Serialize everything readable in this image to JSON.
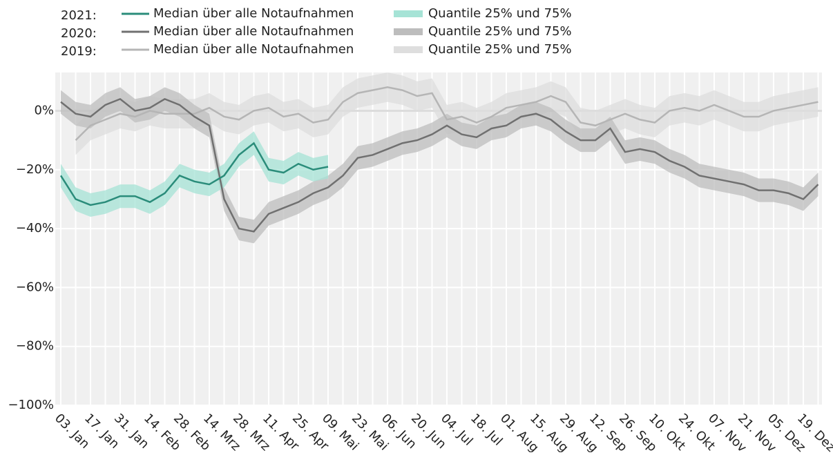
{
  "chart_data": {
    "type": "line",
    "categories": [
      "03. Jan",
      null,
      "17. Jan",
      null,
      "31. Jan",
      null,
      "14. Feb",
      null,
      "28. Feb",
      null,
      "14. Mrz",
      null,
      "28. Mrz",
      null,
      "11. Apr",
      null,
      "25. Apr",
      null,
      "09. Mai",
      null,
      "23. Mai",
      null,
      "06. Jun",
      null,
      "20. Jun",
      null,
      "04. Jul",
      null,
      "18. Jul",
      null,
      "01. Aug",
      null,
      "15. Aug",
      null,
      "29. Aug",
      null,
      "12. Sep",
      null,
      "26. Sep",
      null,
      "10. Okt",
      null,
      "24. Okt",
      null,
      "07. Nov",
      null,
      "21. Nov",
      null,
      "05. Dez",
      null,
      "19. Dez",
      null
    ],
    "ylim": [
      -100,
      13
    ],
    "yticks": [
      {
        "value": 0,
        "label": "0%"
      },
      {
        "value": -20,
        "label": "−20%"
      },
      {
        "value": -40,
        "label": "−40%"
      },
      {
        "value": -60,
        "label": "−60%"
      },
      {
        "value": -80,
        "label": "−80%"
      },
      {
        "value": -100,
        "label": "−100%"
      }
    ],
    "grid": true,
    "series": [
      {
        "name": "2019:",
        "band": {
          "name": "Quantile 25% und 75%",
          "color": "#dedede",
          "lower": [
            null,
            -15,
            -10,
            -8,
            -6,
            -7,
            -5,
            -6,
            -6,
            -6,
            -4,
            -7,
            -8,
            -5,
            -4,
            -7,
            -6,
            -9,
            -8,
            -2,
            1,
            2,
            3,
            2,
            0,
            1,
            -8,
            -7,
            -9,
            -7,
            -4,
            -3,
            -2,
            0,
            -2,
            -9,
            -10,
            -8,
            -6,
            -8,
            -9,
            -5,
            -4,
            -5,
            -3,
            -5,
            -7,
            -7,
            -5,
            -4,
            -3,
            -2
          ],
          "upper": [
            null,
            -5,
            0,
            2,
            4,
            3,
            5,
            4,
            4,
            4,
            6,
            3,
            2,
            5,
            6,
            3,
            4,
            1,
            2,
            8,
            11,
            12,
            13,
            12,
            10,
            11,
            2,
            3,
            1,
            3,
            6,
            7,
            8,
            10,
            8,
            1,
            0,
            2,
            4,
            2,
            1,
            5,
            6,
            5,
            7,
            5,
            3,
            3,
            5,
            6,
            7,
            8
          ]
        },
        "median": {
          "name": "Median über alle Notaufnahmen",
          "color": "#b5b5b5",
          "values": [
            null,
            -10,
            -5,
            -3,
            -1,
            -2,
            0,
            -1,
            -1,
            -1,
            1,
            -2,
            -3,
            0,
            1,
            -2,
            -1,
            -4,
            -3,
            3,
            6,
            7,
            8,
            7,
            5,
            6,
            -3,
            -2,
            -4,
            -2,
            1,
            2,
            3,
            5,
            3,
            -4,
            -5,
            -3,
            -1,
            -3,
            -4,
            0,
            1,
            0,
            2,
            0,
            -2,
            -2,
            0,
            1,
            2,
            3
          ]
        }
      },
      {
        "name": "2020:",
        "band": {
          "name": "Quantile 25% und 75%",
          "color": "#bdbdbd",
          "lower": [
            -1,
            -5,
            -6,
            -2,
            0,
            -4,
            -3,
            0,
            -2,
            -6,
            -9,
            -34,
            -44,
            -45,
            -39,
            -37,
            -35,
            -32,
            -30,
            -26,
            -20,
            -19,
            -17,
            -15,
            -14,
            -12,
            -9,
            -12,
            -13,
            -10,
            -9,
            -6,
            -5,
            -7,
            -11,
            -14,
            -14,
            -10,
            -18,
            -17,
            -18,
            -21,
            -23,
            -26,
            -27,
            -28,
            -29,
            -31,
            -31,
            -32,
            -34,
            -29
          ],
          "upper": [
            7,
            3,
            2,
            6,
            8,
            4,
            5,
            8,
            6,
            2,
            -1,
            -26,
            -36,
            -37,
            -31,
            -29,
            -27,
            -24,
            -22,
            -18,
            -12,
            -11,
            -9,
            -7,
            -6,
            -4,
            -1,
            -4,
            -5,
            -2,
            -1,
            2,
            3,
            1,
            -3,
            -6,
            -6,
            -2,
            -10,
            -9,
            -10,
            -13,
            -15,
            -18,
            -19,
            -20,
            -21,
            -23,
            -23,
            -24,
            -26,
            -21
          ]
        },
        "median": {
          "name": "Median über alle Notaufnahmen",
          "color": "#707070",
          "values": [
            3,
            -1,
            -2,
            2,
            4,
            0,
            1,
            4,
            2,
            -2,
            -5,
            -30,
            -40,
            -41,
            -35,
            -33,
            -31,
            -28,
            -26,
            -22,
            -16,
            -15,
            -13,
            -11,
            -10,
            -8,
            -5,
            -8,
            -9,
            -6,
            -5,
            -2,
            -1,
            -3,
            -7,
            -10,
            -10,
            -6,
            -14,
            -13,
            -14,
            -17,
            -19,
            -22,
            -23,
            -24,
            -25,
            -27,
            -27,
            -28,
            -30,
            -25
          ]
        }
      },
      {
        "name": "2021:",
        "band": {
          "name": "Quantile 25% und 75%",
          "color": "#a6e3d6",
          "lower": [
            -26,
            -34,
            -36,
            -35,
            -33,
            -33,
            -35,
            -32,
            -26,
            -28,
            -29,
            -26,
            -19,
            -15,
            -24,
            -25,
            -22,
            -24,
            -23,
            null,
            null,
            null,
            null,
            null,
            null,
            null,
            null,
            null,
            null,
            null,
            null,
            null,
            null,
            null,
            null,
            null,
            null,
            null,
            null,
            null,
            null,
            null,
            null,
            null,
            null,
            null,
            null,
            null,
            null,
            null,
            null,
            null
          ],
          "upper": [
            -18,
            -26,
            -28,
            -27,
            -25,
            -25,
            -27,
            -24,
            -18,
            -20,
            -21,
            -18,
            -11,
            -7,
            -16,
            -17,
            -14,
            -16,
            -15,
            null,
            null,
            null,
            null,
            null,
            null,
            null,
            null,
            null,
            null,
            null,
            null,
            null,
            null,
            null,
            null,
            null,
            null,
            null,
            null,
            null,
            null,
            null,
            null,
            null,
            null,
            null,
            null,
            null,
            null,
            null,
            null,
            null
          ]
        },
        "median": {
          "name": "Median über alle Notaufnahmen",
          "color": "#2a8c7a",
          "values": [
            -22,
            -30,
            -32,
            -31,
            -29,
            -29,
            -31,
            -28,
            -22,
            -24,
            -25,
            -22,
            -15,
            -11,
            -20,
            -21,
            -18,
            -20,
            -19,
            null,
            null,
            null,
            null,
            null,
            null,
            null,
            null,
            null,
            null,
            null,
            null,
            null,
            null,
            null,
            null,
            null,
            null,
            null,
            null,
            null,
            null,
            null,
            null,
            null,
            null,
            null,
            null,
            null,
            null,
            null,
            null,
            null
          ]
        }
      }
    ]
  }
}
